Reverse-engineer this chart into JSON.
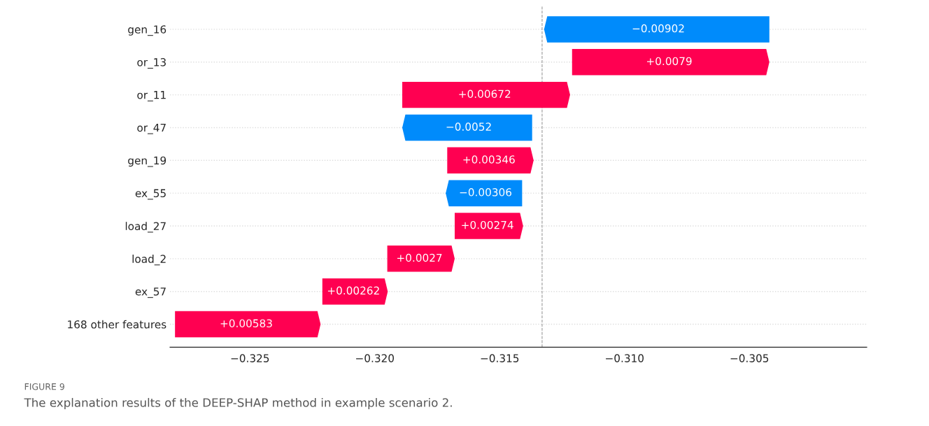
{
  "chart_data": {
    "type": "bar",
    "orientation": "horizontal",
    "categories": [
      "gen_16",
      "or_13",
      "or_11",
      "or_47",
      "gen_19",
      "ex_55",
      "load_27",
      "load_2",
      "ex_57",
      "168 other features"
    ],
    "values": [
      -0.00902,
      0.0079,
      0.00672,
      -0.0052,
      0.00346,
      -0.00306,
      0.00274,
      0.0027,
      0.00262,
      0.00583
    ],
    "base": [
      -0.3042,
      -0.3121,
      -0.3189,
      -0.3137,
      -0.3171,
      -0.3141,
      -0.3168,
      -0.3195,
      -0.3221,
      -0.328
    ],
    "colors": [
      "#008bfb",
      "#ff0051",
      "#ff0051",
      "#008bfb",
      "#ff0051",
      "#008bfb",
      "#ff0051",
      "#ff0051",
      "#ff0051",
      "#ff0051"
    ],
    "value_labels": [
      "−0.00902",
      "+0.0079",
      "+0.00672",
      "−0.0052",
      "+0.00346",
      "−0.00306",
      "+0.00274",
      "+0.0027",
      "+0.00262",
      "+0.00583"
    ],
    "xlim": [
      -0.3282,
      -0.3003
    ],
    "xticks": [
      {
        "value": -0.325,
        "label": "−0.325"
      },
      {
        "value": -0.32,
        "label": "−0.320"
      },
      {
        "value": -0.315,
        "label": "−0.315"
      },
      {
        "value": -0.31,
        "label": "−0.310"
      },
      {
        "value": -0.305,
        "label": "−0.305"
      }
    ],
    "ref_lines": [
      {
        "axis": "x",
        "value": -0.3133,
        "color": "#999999",
        "line_style": "dashed"
      }
    ],
    "grid": "y",
    "annotations": [
      "FIGURE 9",
      "The explanation results of the DEEP-SHAP method in example scenario 2."
    ]
  }
}
